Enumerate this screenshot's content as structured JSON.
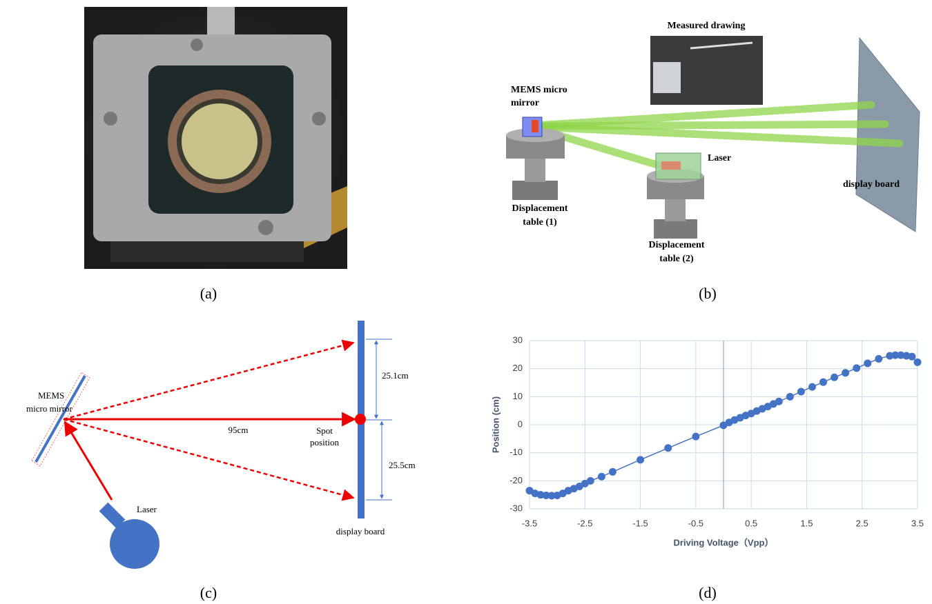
{
  "panels": {
    "a": {
      "caption": "(a)"
    },
    "b": {
      "caption": "(b)",
      "photo_title": "Measured drawing",
      "mems_label": [
        "MEMS micro",
        "mirror"
      ],
      "laser_label": "Laser",
      "board_label": "display board",
      "table1_label": [
        "Displacement",
        "table (1)"
      ],
      "table2_label": [
        "Displacement",
        "table (2)"
      ]
    },
    "c": {
      "caption": "(c)",
      "mems_label": [
        "MEMS",
        "micro mirror"
      ],
      "distance_label": "95cm",
      "spot_label": [
        "Spot",
        "position"
      ],
      "upper_label": "25.1cm",
      "lower_label": "25.5cm",
      "laser_label": "Laser",
      "board_label": "display board"
    },
    "d": {
      "caption": "(d)"
    }
  },
  "chart_data": {
    "type": "line",
    "xlabel": "Driving Voltage（Vpp）",
    "ylabel": "Position (cm)",
    "x": [
      -3.5,
      -3.4,
      -3.3,
      -3.2,
      -3.1,
      -3.0,
      -2.9,
      -2.8,
      -2.7,
      -2.6,
      -2.5,
      -2.4,
      -2.2,
      -2.0,
      -1.5,
      -1.0,
      -0.5,
      0.0,
      0.1,
      0.2,
      0.3,
      0.4,
      0.5,
      0.6,
      0.7,
      0.8,
      0.9,
      1.0,
      1.2,
      1.4,
      1.6,
      1.8,
      2.0,
      2.2,
      2.4,
      2.6,
      2.8,
      3.0,
      3.1,
      3.2,
      3.3,
      3.4,
      3.5
    ],
    "values": [
      -23.5,
      -24.5,
      -25,
      -25.2,
      -25.3,
      -25.2,
      -24.5,
      -23.5,
      -22.8,
      -22,
      -21,
      -20,
      -18.5,
      -16.8,
      -12.5,
      -8.3,
      -4.2,
      -0.2,
      0.8,
      1.7,
      2.5,
      3.3,
      4,
      4.9,
      5.7,
      6.5,
      7.4,
      8.3,
      10,
      11.8,
      13.5,
      15.2,
      16.9,
      18.5,
      20.2,
      21.9,
      23.5,
      24.6,
      24.8,
      24.8,
      24.6,
      24.3,
      22.3
    ],
    "color": "#4472c4",
    "xlim": [
      -3.5,
      3.5
    ],
    "ylim": [
      -30,
      30
    ],
    "xticks": [
      -3.5,
      -2.5,
      -1.5,
      -0.5,
      0.5,
      1.5,
      2.5,
      3.5
    ],
    "yticks": [
      -30,
      -20,
      -10,
      0,
      10,
      20,
      30
    ],
    "grid": true
  }
}
